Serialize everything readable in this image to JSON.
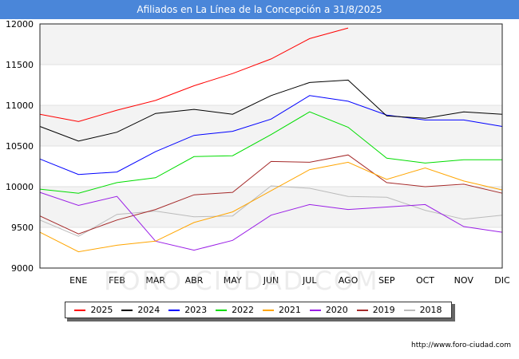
{
  "title": "Afiliados en La Línea de la Concepción a 31/8/2025",
  "footer": "http://www.foro-ciudad.com",
  "watermark": "FORO-CIUDAD.COM",
  "chart_data": {
    "type": "line",
    "title": "Afiliados en La Línea de la Concepción a 31/8/2025",
    "categories": [
      "",
      "ENE",
      "FEB",
      "MAR",
      "ABR",
      "MAY",
      "JUN",
      "JUL",
      "AGO",
      "SEP",
      "OCT",
      "NOV",
      "DIC"
    ],
    "ylim": [
      9000,
      12000
    ],
    "yticks": [
      9000,
      9500,
      10000,
      10500,
      11000,
      11500,
      12000
    ],
    "ytick_labels": [
      "9000",
      "9500",
      "10000",
      "10500",
      "11000",
      "11500",
      "12000"
    ],
    "grid": "horizontal bands",
    "legend_position": "bottom",
    "series": [
      {
        "name": "2025",
        "color": "#ff0000",
        "values": [
          10890,
          10800,
          10940,
          11060,
          11240,
          11390,
          11570,
          11820,
          11950,
          null,
          null,
          null,
          null
        ]
      },
      {
        "name": "2024",
        "color": "#000000",
        "values": [
          10740,
          10560,
          10670,
          10900,
          10950,
          10890,
          11120,
          11280,
          11310,
          10870,
          10840,
          10920,
          10890
        ]
      },
      {
        "name": "2023",
        "color": "#0000ff",
        "values": [
          10340,
          10150,
          10180,
          10430,
          10630,
          10680,
          10830,
          11120,
          11050,
          10880,
          10820,
          10820,
          10740
        ]
      },
      {
        "name": "2022",
        "color": "#00dd00",
        "values": [
          9970,
          9920,
          10050,
          10110,
          10370,
          10380,
          10640,
          10920,
          10730,
          10350,
          10290,
          10330,
          10330
        ]
      },
      {
        "name": "2021",
        "color": "#ffa500",
        "values": [
          9440,
          9200,
          9280,
          9330,
          9560,
          9690,
          9950,
          10210,
          10300,
          10090,
          10230,
          10070,
          9960
        ]
      },
      {
        "name": "2020",
        "color": "#9a1ee6",
        "values": [
          9930,
          9770,
          9880,
          9330,
          9220,
          9340,
          9650,
          9780,
          9720,
          9750,
          9780,
          9510,
          9440
        ]
      },
      {
        "name": "2019",
        "color": "#a52a2a",
        "values": [
          9640,
          9420,
          9590,
          9720,
          9900,
          9930,
          10310,
          10300,
          10390,
          10050,
          10000,
          10030,
          9920
        ]
      },
      {
        "name": "2018",
        "color": "#bbbbbb",
        "values": [
          9590,
          9390,
          9660,
          9700,
          9630,
          9640,
          10010,
          9980,
          9880,
          9870,
          9710,
          9600,
          9650
        ]
      }
    ]
  }
}
